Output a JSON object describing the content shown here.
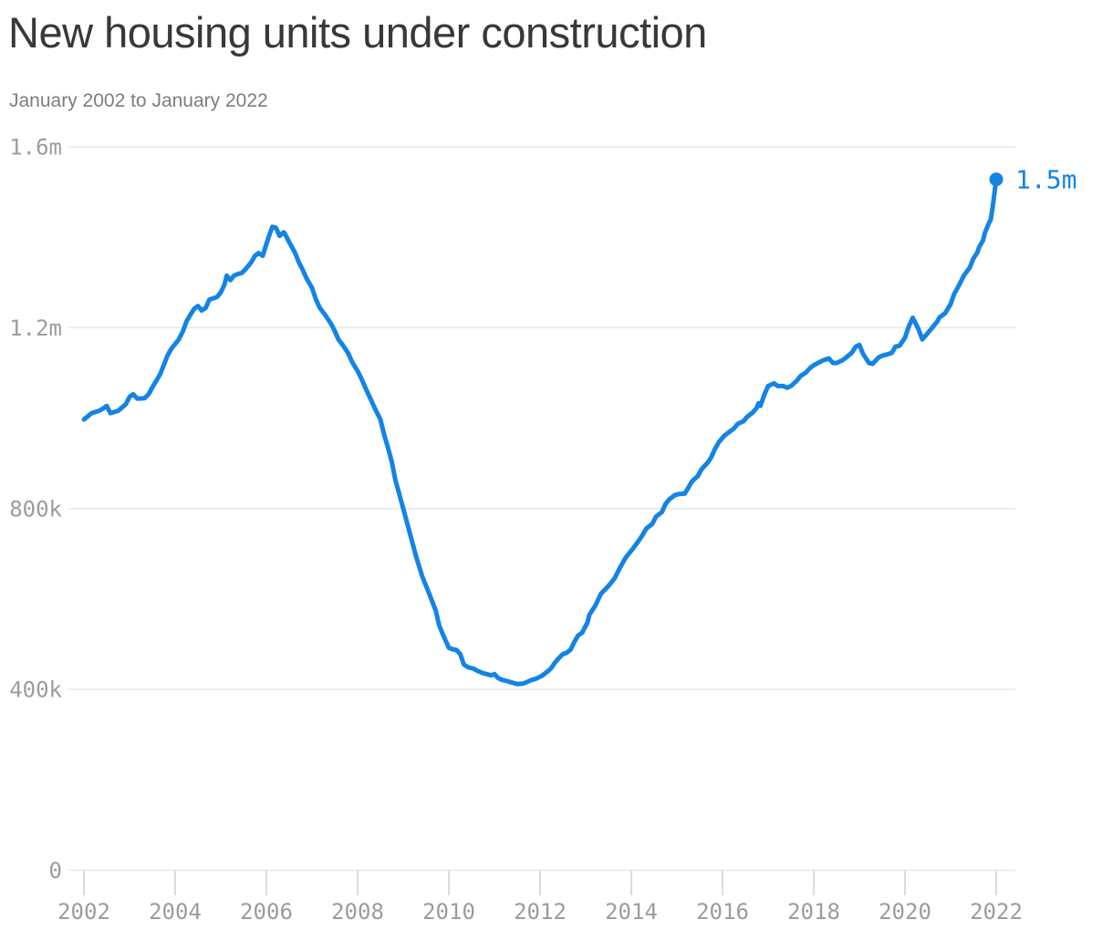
{
  "header": {
    "title": "New housing units under construction",
    "subtitle": "January 2002 to January 2022"
  },
  "chart_data": {
    "type": "line",
    "title": "New housing units under construction",
    "subtitle": "January 2002 to January 2022",
    "xlabel": "",
    "ylabel": "",
    "y_unit": "thousands of housing units",
    "grid": "horizontal",
    "xlim": [
      2002,
      2022
    ],
    "ylim": [
      0,
      1600
    ],
    "y_ticks": [
      {
        "value": 0,
        "label": "0"
      },
      {
        "value": 400,
        "label": "400k"
      },
      {
        "value": 800,
        "label": "800k"
      },
      {
        "value": 1200,
        "label": "1.2m"
      },
      {
        "value": 1600,
        "label": "1.6m"
      }
    ],
    "x_ticks": [
      {
        "value": 2002,
        "label": "2002"
      },
      {
        "value": 2004,
        "label": "2004"
      },
      {
        "value": 2006,
        "label": "2006"
      },
      {
        "value": 2008,
        "label": "2008"
      },
      {
        "value": 2010,
        "label": "2010"
      },
      {
        "value": 2012,
        "label": "2012"
      },
      {
        "value": 2014,
        "label": "2014"
      },
      {
        "value": 2016,
        "label": "2016"
      },
      {
        "value": 2018,
        "label": "2018"
      },
      {
        "value": 2020,
        "label": "2020"
      },
      {
        "value": 2022,
        "label": "2022"
      }
    ],
    "colors": {
      "line": "#1484e4",
      "grid": "#e7e7e7",
      "tick": "#dcdcdc",
      "axis_text": "#9c9c9c",
      "title_text": "#383838",
      "subtitle_text": "#7d7d7d"
    },
    "series": [
      {
        "name": "Housing units under construction (thousands, monthly)",
        "end_label": "1.5m",
        "points": [
          [
            2002.0,
            997
          ],
          [
            2002.17,
            1011
          ],
          [
            2002.33,
            1016
          ],
          [
            2002.42,
            1021
          ],
          [
            2002.5,
            1027
          ],
          [
            2002.58,
            1011
          ],
          [
            2002.75,
            1016
          ],
          [
            2002.83,
            1023
          ],
          [
            2002.92,
            1031
          ],
          [
            2003.0,
            1047
          ],
          [
            2003.08,
            1053
          ],
          [
            2003.17,
            1043
          ],
          [
            2003.33,
            1044
          ],
          [
            2003.42,
            1053
          ],
          [
            2003.5,
            1068
          ],
          [
            2003.67,
            1097
          ],
          [
            2003.75,
            1117
          ],
          [
            2003.83,
            1138
          ],
          [
            2003.92,
            1154
          ],
          [
            2004.08,
            1174
          ],
          [
            2004.17,
            1192
          ],
          [
            2004.25,
            1214
          ],
          [
            2004.33,
            1228
          ],
          [
            2004.42,
            1242
          ],
          [
            2004.5,
            1248
          ],
          [
            2004.58,
            1238
          ],
          [
            2004.67,
            1244
          ],
          [
            2004.75,
            1262
          ],
          [
            2004.92,
            1268
          ],
          [
            2005.0,
            1278
          ],
          [
            2005.08,
            1295
          ],
          [
            2005.13,
            1315
          ],
          [
            2005.21,
            1305
          ],
          [
            2005.29,
            1315
          ],
          [
            2005.38,
            1319
          ],
          [
            2005.46,
            1321
          ],
          [
            2005.54,
            1329
          ],
          [
            2005.67,
            1345
          ],
          [
            2005.75,
            1359
          ],
          [
            2005.83,
            1365
          ],
          [
            2005.92,
            1359
          ],
          [
            2006.0,
            1385
          ],
          [
            2006.08,
            1409
          ],
          [
            2006.13,
            1423
          ],
          [
            2006.21,
            1421
          ],
          [
            2006.29,
            1403
          ],
          [
            2006.38,
            1411
          ],
          [
            2006.42,
            1405
          ],
          [
            2006.5,
            1389
          ],
          [
            2006.63,
            1365
          ],
          [
            2006.71,
            1345
          ],
          [
            2006.79,
            1329
          ],
          [
            2006.88,
            1309
          ],
          [
            2007.0,
            1288
          ],
          [
            2007.08,
            1264
          ],
          [
            2007.17,
            1244
          ],
          [
            2007.29,
            1228
          ],
          [
            2007.42,
            1208
          ],
          [
            2007.5,
            1192
          ],
          [
            2007.58,
            1174
          ],
          [
            2007.67,
            1162
          ],
          [
            2007.79,
            1144
          ],
          [
            2007.88,
            1124
          ],
          [
            2008.0,
            1104
          ],
          [
            2008.08,
            1088
          ],
          [
            2008.17,
            1067
          ],
          [
            2008.29,
            1041
          ],
          [
            2008.38,
            1021
          ],
          [
            2008.5,
            997
          ],
          [
            2008.58,
            964
          ],
          [
            2008.67,
            933
          ],
          [
            2008.75,
            903
          ],
          [
            2008.83,
            862
          ],
          [
            2008.92,
            830
          ],
          [
            2009.08,
            770
          ],
          [
            2009.17,
            736
          ],
          [
            2009.29,
            691
          ],
          [
            2009.42,
            649
          ],
          [
            2009.58,
            609
          ],
          [
            2009.71,
            575
          ],
          [
            2009.79,
            541
          ],
          [
            2009.88,
            519
          ],
          [
            2010.0,
            492
          ],
          [
            2010.08,
            489
          ],
          [
            2010.17,
            487
          ],
          [
            2010.25,
            478
          ],
          [
            2010.33,
            455
          ],
          [
            2010.42,
            449
          ],
          [
            2010.54,
            446
          ],
          [
            2010.63,
            441
          ],
          [
            2010.75,
            436
          ],
          [
            2010.83,
            434
          ],
          [
            2010.92,
            431
          ],
          [
            2011.0,
            434
          ],
          [
            2011.08,
            425
          ],
          [
            2011.17,
            421
          ],
          [
            2011.29,
            418
          ],
          [
            2011.42,
            414
          ],
          [
            2011.5,
            412
          ],
          [
            2011.63,
            413
          ],
          [
            2011.71,
            416
          ],
          [
            2011.79,
            420
          ],
          [
            2011.92,
            424
          ],
          [
            2012.04,
            430
          ],
          [
            2012.17,
            440
          ],
          [
            2012.25,
            448
          ],
          [
            2012.33,
            460
          ],
          [
            2012.42,
            470
          ],
          [
            2012.5,
            478
          ],
          [
            2012.58,
            481
          ],
          [
            2012.67,
            488
          ],
          [
            2012.75,
            505
          ],
          [
            2012.83,
            519
          ],
          [
            2012.92,
            525
          ],
          [
            2013.04,
            548
          ],
          [
            2013.08,
            565
          ],
          [
            2013.21,
            585
          ],
          [
            2013.33,
            611
          ],
          [
            2013.5,
            629
          ],
          [
            2013.63,
            645
          ],
          [
            2013.75,
            669
          ],
          [
            2013.88,
            692
          ],
          [
            2013.96,
            702
          ],
          [
            2014.04,
            712
          ],
          [
            2014.17,
            730
          ],
          [
            2014.25,
            742
          ],
          [
            2014.33,
            756
          ],
          [
            2014.46,
            766
          ],
          [
            2014.54,
            782
          ],
          [
            2014.67,
            792
          ],
          [
            2014.75,
            810
          ],
          [
            2014.83,
            820
          ],
          [
            2014.96,
            830
          ],
          [
            2015.04,
            832
          ],
          [
            2015.17,
            833
          ],
          [
            2015.25,
            846
          ],
          [
            2015.33,
            860
          ],
          [
            2015.46,
            872
          ],
          [
            2015.54,
            887
          ],
          [
            2015.67,
            901
          ],
          [
            2015.75,
            913
          ],
          [
            2015.83,
            931
          ],
          [
            2015.92,
            947
          ],
          [
            2016.04,
            961
          ],
          [
            2016.17,
            971
          ],
          [
            2016.25,
            977
          ],
          [
            2016.33,
            987
          ],
          [
            2016.46,
            993
          ],
          [
            2016.54,
            1003
          ],
          [
            2016.67,
            1013
          ],
          [
            2016.75,
            1023
          ],
          [
            2016.79,
            1033
          ],
          [
            2016.83,
            1027
          ],
          [
            2016.92,
            1053
          ],
          [
            2017.0,
            1071
          ],
          [
            2017.13,
            1077
          ],
          [
            2017.21,
            1071
          ],
          [
            2017.33,
            1071
          ],
          [
            2017.42,
            1067
          ],
          [
            2017.5,
            1071
          ],
          [
            2017.63,
            1083
          ],
          [
            2017.71,
            1093
          ],
          [
            2017.83,
            1101
          ],
          [
            2017.92,
            1111
          ],
          [
            2018.0,
            1117
          ],
          [
            2018.13,
            1124
          ],
          [
            2018.21,
            1128
          ],
          [
            2018.33,
            1132
          ],
          [
            2018.42,
            1122
          ],
          [
            2018.5,
            1122
          ],
          [
            2018.63,
            1128
          ],
          [
            2018.71,
            1134
          ],
          [
            2018.83,
            1144
          ],
          [
            2018.92,
            1158
          ],
          [
            2019.0,
            1162
          ],
          [
            2019.08,
            1142
          ],
          [
            2019.21,
            1122
          ],
          [
            2019.29,
            1120
          ],
          [
            2019.42,
            1134
          ],
          [
            2019.5,
            1138
          ],
          [
            2019.58,
            1140
          ],
          [
            2019.71,
            1144
          ],
          [
            2019.79,
            1158
          ],
          [
            2019.88,
            1160
          ],
          [
            2020.0,
            1178
          ],
          [
            2020.08,
            1202
          ],
          [
            2020.17,
            1222
          ],
          [
            2020.29,
            1198
          ],
          [
            2020.38,
            1174
          ],
          [
            2020.5,
            1188
          ],
          [
            2020.58,
            1198
          ],
          [
            2020.71,
            1214
          ],
          [
            2020.75,
            1222
          ],
          [
            2020.88,
            1232
          ],
          [
            2021.0,
            1252
          ],
          [
            2021.08,
            1275
          ],
          [
            2021.17,
            1291
          ],
          [
            2021.29,
            1315
          ],
          [
            2021.42,
            1333
          ],
          [
            2021.5,
            1353
          ],
          [
            2021.58,
            1365
          ],
          [
            2021.63,
            1379
          ],
          [
            2021.71,
            1393
          ],
          [
            2021.75,
            1409
          ],
          [
            2021.83,
            1429
          ],
          [
            2021.88,
            1439
          ],
          [
            2021.92,
            1465
          ],
          [
            2022.0,
            1528
          ]
        ]
      }
    ]
  }
}
